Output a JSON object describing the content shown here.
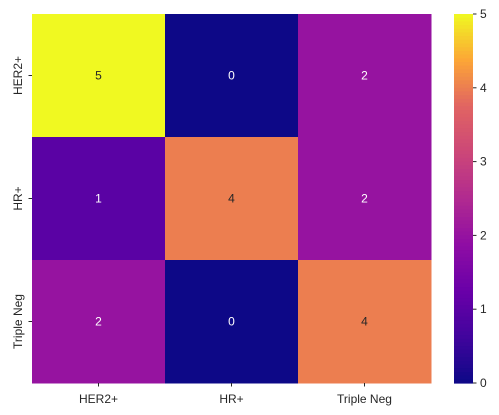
{
  "chart_data": {
    "type": "heatmap",
    "title": "",
    "xlabel": "",
    "ylabel": "",
    "x_categories": [
      "HER2+",
      "HR+",
      "Triple Neg"
    ],
    "y_categories": [
      "HER2+",
      "HR+",
      "Triple Neg"
    ],
    "values": [
      [
        5,
        0,
        2
      ],
      [
        1,
        4,
        2
      ],
      [
        2,
        0,
        4
      ]
    ],
    "annotations_shown": true,
    "colormap": "plasma",
    "vmin": 0,
    "vmax": 5,
    "colorbar_ticks": [
      "0",
      "1",
      "2",
      "3",
      "4",
      "5"
    ]
  }
}
